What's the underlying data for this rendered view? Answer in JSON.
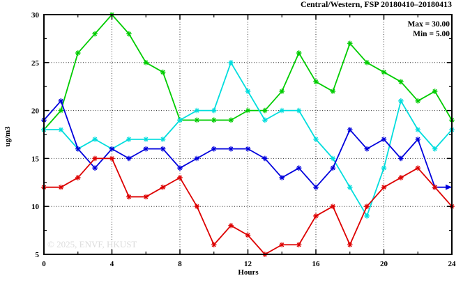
{
  "title": "Central/Western, FSP 20180410–20180413",
  "legend": {
    "max_label": "Max = 30.00",
    "min_label": "Min =  5.00"
  },
  "watermark": "© 2025, ENVF, HKUST",
  "chart_data": {
    "type": "line",
    "title": "Central/Western, FSP 20180410–20180413",
    "xlabel": "Hours",
    "ylabel": "ug/m3",
    "xlim": [
      0,
      24
    ],
    "ylim": [
      5,
      30
    ],
    "xticks_major": [
      0,
      4,
      8,
      12,
      16,
      20,
      24
    ],
    "xticks_minor": [
      2,
      6,
      10,
      14,
      18,
      22
    ],
    "yticks_major": [
      5,
      10,
      15,
      20,
      25,
      30
    ],
    "yticks_minor": [
      7.5,
      12.5,
      17.5,
      22.5,
      27.5
    ],
    "grid": "dotted",
    "legend_position": "top-right-inside",
    "max_value": 30.0,
    "min_value": 5.0,
    "x": [
      0,
      1,
      2,
      3,
      4,
      5,
      6,
      7,
      8,
      9,
      10,
      11,
      12,
      13,
      14,
      15,
      16,
      17,
      18,
      19,
      20,
      21,
      22,
      23,
      24
    ],
    "series": [
      {
        "name": "series-green",
        "color": "#00cc00",
        "marker": "star",
        "values": [
          18,
          20,
          26,
          28,
          30,
          28,
          25,
          24,
          19,
          19,
          19,
          19,
          20,
          20,
          22,
          26,
          23,
          22,
          27,
          25,
          24,
          23,
          21,
          22,
          19
        ]
      },
      {
        "name": "series-cyan",
        "color": "#00dddd",
        "marker": "star",
        "values": [
          18,
          18,
          16,
          17,
          16,
          17,
          17,
          17,
          19,
          20,
          20,
          25,
          22,
          19,
          20,
          20,
          17,
          15,
          12,
          9,
          14,
          21,
          18,
          16,
          18
        ]
      },
      {
        "name": "series-blue",
        "color": "#0000dd",
        "marker": "star",
        "arrow_end": true,
        "values": [
          19,
          21,
          16,
          14,
          16,
          15,
          16,
          16,
          14,
          15,
          16,
          16,
          16,
          15,
          13,
          14,
          12,
          14,
          18,
          16,
          17,
          15,
          17,
          12,
          12
        ]
      },
      {
        "name": "series-red",
        "color": "#dd0000",
        "marker": "star",
        "values": [
          12,
          12,
          13,
          15,
          15,
          11,
          11,
          12,
          13,
          10,
          6,
          8,
          7,
          5,
          6,
          6,
          9,
          10,
          6,
          10,
          12,
          13,
          14,
          12,
          10
        ]
      }
    ]
  }
}
